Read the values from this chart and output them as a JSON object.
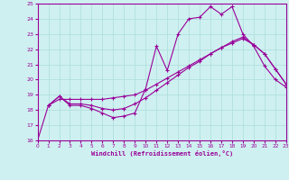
{
  "xlabel": "Windchill (Refroidissement éolien,°C)",
  "bg_color": "#cff0f0",
  "grid_color": "#aadddd",
  "line_color": "#990099",
  "xmin": 0,
  "xmax": 23,
  "ymin": 16,
  "ymax": 25,
  "series": [
    [
      16.0,
      18.3,
      18.9,
      18.3,
      18.3,
      18.1,
      17.8,
      17.5,
      17.6,
      17.8,
      19.4,
      22.2,
      20.6,
      23.0,
      24.0,
      24.1,
      24.8,
      24.3,
      24.8,
      23.0,
      22.2,
      20.9,
      20.0,
      19.5
    ],
    [
      null,
      18.3,
      18.9,
      18.4,
      18.4,
      18.3,
      18.1,
      18.0,
      18.1,
      18.4,
      18.8,
      19.3,
      19.8,
      20.3,
      20.8,
      21.2,
      21.7,
      22.1,
      22.5,
      22.8,
      22.3,
      21.7,
      20.7,
      19.7
    ],
    [
      null,
      18.3,
      18.7,
      18.7,
      18.7,
      18.7,
      18.7,
      18.8,
      18.9,
      19.0,
      19.3,
      19.7,
      20.1,
      20.5,
      20.9,
      21.3,
      21.7,
      22.1,
      22.4,
      22.7,
      22.3,
      21.7,
      20.7,
      19.7
    ]
  ]
}
